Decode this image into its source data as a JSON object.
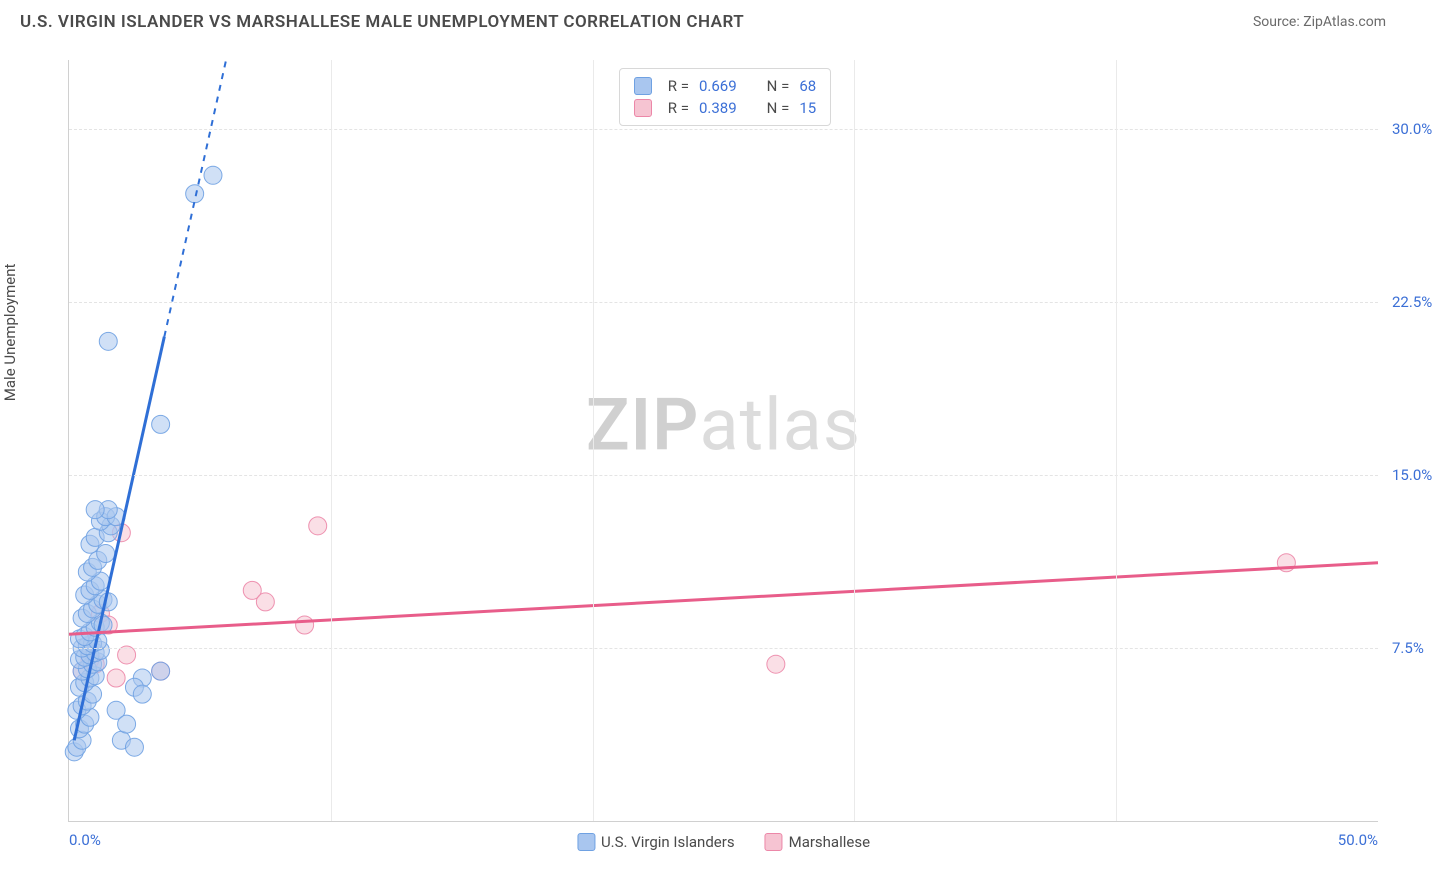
{
  "header": {
    "title": "U.S. VIRGIN ISLANDER VS MARSHALLESE MALE UNEMPLOYMENT CORRELATION CHART",
    "source_label": "Source: ",
    "source_name": "ZipAtlas.com"
  },
  "chart": {
    "type": "scatter",
    "ylabel": "Male Unemployment",
    "xlim": [
      0,
      50
    ],
    "ylim": [
      0,
      33
    ],
    "ytick_values": [
      7.5,
      15.0,
      22.5,
      30.0
    ],
    "ytick_labels": [
      "7.5%",
      "15.0%",
      "22.5%",
      "30.0%"
    ],
    "xtick_values": [
      10,
      20,
      30,
      40
    ],
    "xtick_start_label": "0.0%",
    "xtick_end_label": "50.0%",
    "background_color": "#ffffff",
    "grid_color": "#e4e4e4",
    "watermark_zip": "ZIP",
    "watermark_atlas": "atlas",
    "series": {
      "usvi": {
        "label": "U.S. Virgin Islanders",
        "color_fill": "#a9c6ef",
        "color_stroke": "#6fa1e2",
        "line_color": "#2f6fd6",
        "marker_radius": 9,
        "marker_opacity": 0.55,
        "R": "0.669",
        "N": "68",
        "trend": {
          "x1": 0.2,
          "y1": 3.5,
          "x2": 6.0,
          "y2": 33.0,
          "dashed_above_y": 21.0
        },
        "points": [
          [
            0.2,
            3.0
          ],
          [
            0.3,
            3.2
          ],
          [
            0.5,
            3.5
          ],
          [
            0.4,
            4.0
          ],
          [
            0.6,
            4.2
          ],
          [
            0.8,
            4.5
          ],
          [
            0.3,
            4.8
          ],
          [
            0.5,
            5.0
          ],
          [
            0.7,
            5.2
          ],
          [
            0.9,
            5.5
          ],
          [
            0.4,
            5.8
          ],
          [
            0.6,
            6.0
          ],
          [
            0.8,
            6.2
          ],
          [
            1.0,
            6.3
          ],
          [
            0.5,
            6.5
          ],
          [
            0.7,
            6.6
          ],
          [
            0.9,
            6.8
          ],
          [
            1.1,
            6.9
          ],
          [
            0.4,
            7.0
          ],
          [
            0.6,
            7.1
          ],
          [
            0.8,
            7.2
          ],
          [
            1.0,
            7.3
          ],
          [
            1.2,
            7.4
          ],
          [
            0.5,
            7.5
          ],
          [
            0.7,
            7.6
          ],
          [
            0.9,
            7.7
          ],
          [
            1.1,
            7.8
          ],
          [
            0.4,
            7.9
          ],
          [
            0.6,
            8.0
          ],
          [
            0.8,
            8.2
          ],
          [
            1.0,
            8.4
          ],
          [
            1.2,
            8.6
          ],
          [
            0.5,
            8.8
          ],
          [
            0.7,
            9.0
          ],
          [
            0.9,
            9.2
          ],
          [
            1.1,
            9.4
          ],
          [
            1.3,
            9.6
          ],
          [
            0.6,
            9.8
          ],
          [
            0.8,
            10.0
          ],
          [
            1.0,
            10.2
          ],
          [
            1.2,
            10.4
          ],
          [
            0.7,
            10.8
          ],
          [
            0.9,
            11.0
          ],
          [
            1.1,
            11.3
          ],
          [
            1.4,
            11.6
          ],
          [
            0.8,
            12.0
          ],
          [
            1.0,
            12.3
          ],
          [
            1.5,
            12.5
          ],
          [
            1.6,
            12.8
          ],
          [
            1.2,
            13.0
          ],
          [
            1.4,
            13.2
          ],
          [
            1.8,
            13.2
          ],
          [
            2.8,
            6.2
          ],
          [
            2.0,
            3.5
          ],
          [
            2.5,
            3.2
          ],
          [
            3.5,
            6.5
          ],
          [
            3.5,
            17.2
          ],
          [
            1.5,
            20.8
          ],
          [
            4.8,
            27.2
          ],
          [
            5.5,
            28.0
          ],
          [
            2.5,
            5.8
          ],
          [
            2.8,
            5.5
          ],
          [
            1.8,
            4.8
          ],
          [
            2.2,
            4.2
          ],
          [
            1.5,
            13.5
          ],
          [
            1.0,
            13.5
          ],
          [
            1.3,
            8.5
          ],
          [
            1.5,
            9.5
          ]
        ]
      },
      "marsh": {
        "label": "Marshallese",
        "color_fill": "#f6c4d2",
        "color_stroke": "#ec87a8",
        "line_color": "#e85d8a",
        "marker_radius": 9,
        "marker_opacity": 0.55,
        "R": "0.389",
        "N": "15",
        "trend": {
          "x1": 0.0,
          "y1": 8.1,
          "x2": 50.0,
          "y2": 11.2
        },
        "points": [
          [
            0.5,
            6.5
          ],
          [
            0.8,
            7.0
          ],
          [
            1.0,
            6.8
          ],
          [
            1.2,
            9.0
          ],
          [
            1.5,
            8.5
          ],
          [
            2.0,
            12.5
          ],
          [
            3.5,
            6.5
          ],
          [
            7.0,
            10.0
          ],
          [
            7.5,
            9.5
          ],
          [
            9.0,
            8.5
          ],
          [
            9.5,
            12.8
          ],
          [
            27.0,
            6.8
          ],
          [
            46.5,
            11.2
          ],
          [
            1.8,
            6.2
          ],
          [
            2.2,
            7.2
          ]
        ]
      }
    },
    "top_legend": {
      "R_label": "R =",
      "N_label": "N ="
    }
  }
}
